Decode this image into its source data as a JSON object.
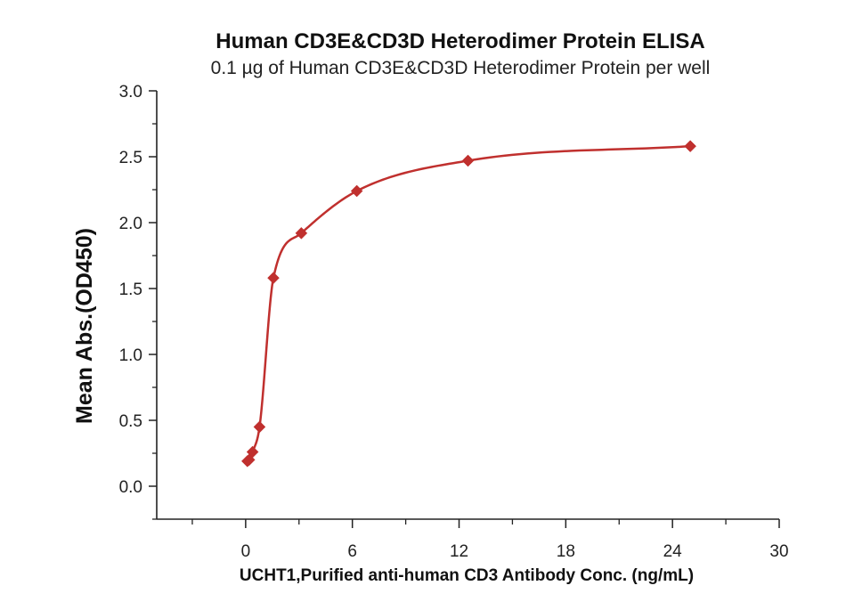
{
  "chart_data": {
    "type": "scatter",
    "title": "Human CD3E&CD3D Heterodimer Protein ELISA",
    "subtitle": "0.1 µg of Human CD3E&CD3D Heterodimer Protein per well",
    "xlabel": "UCHT1,Purified anti-human CD3 Antibody Conc. (ng/mL)",
    "ylabel": "Mean Abs.(OD450)",
    "xlim": [
      -5,
      30
    ],
    "ylim": [
      -0.25,
      3.0
    ],
    "x_ticks": [
      0,
      6,
      12,
      18,
      24,
      30
    ],
    "y_ticks": [
      0.0,
      0.5,
      1.0,
      1.5,
      2.0,
      2.5,
      3.0
    ],
    "x_tick_labels": [
      "0",
      "6",
      "12",
      "18",
      "24",
      "30"
    ],
    "y_tick_labels": [
      "0.0",
      "0.5",
      "1.0",
      "1.5",
      "2.0",
      "2.5",
      "3.0"
    ],
    "grid": false,
    "color": "#c0302e",
    "series": [
      {
        "points": [
          {
            "x": 0.098,
            "y": 0.19
          },
          {
            "x": 0.195,
            "y": 0.2
          },
          {
            "x": 0.39,
            "y": 0.26
          },
          {
            "x": 0.78,
            "y": 0.45
          },
          {
            "x": 1.56,
            "y": 1.58
          },
          {
            "x": 3.13,
            "y": 1.92
          },
          {
            "x": 6.25,
            "y": 2.24
          },
          {
            "x": 12.5,
            "y": 2.47
          },
          {
            "x": 25,
            "y": 2.58
          }
        ]
      }
    ]
  }
}
